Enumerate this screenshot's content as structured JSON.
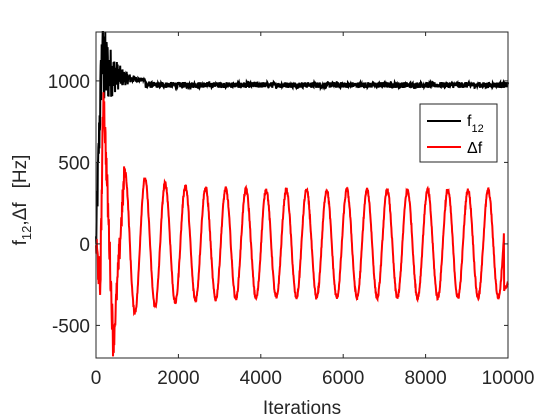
{
  "chart_data": {
    "type": "line",
    "xlabel": "Iterations",
    "ylabel_main": "f",
    "ylabel_sub": "12",
    "ylabel_rest": ",Δf",
    "ylabel_unit": "[Hz]",
    "xlim": [
      0,
      10000
    ],
    "ylim": [
      -700,
      1300
    ],
    "x_ticks": [
      0,
      2000,
      4000,
      6000,
      8000,
      10000
    ],
    "x_tick_labels": [
      "0",
      "2000",
      "4000",
      "6000",
      "8000",
      "10000"
    ],
    "y_ticks": [
      -500,
      0,
      500,
      1000
    ],
    "y_tick_labels": [
      "-500",
      "0",
      "500",
      "1000"
    ],
    "grid": false,
    "legend_position": "right",
    "series": [
      {
        "name_main": "f",
        "name_sub": "12",
        "color": "#000000",
        "description_values": {
          "start": 0,
          "early_peak": 1300,
          "steady_state": 975,
          "settle_iteration": 1200
        }
      },
      {
        "name_main": "Δf",
        "name_sub": "",
        "color": "#ff0000",
        "description_values": {
          "start": 0,
          "early_peak": 950,
          "early_trough": -630,
          "oscillation_amplitude": 330,
          "oscillation_period": 490,
          "end_value": -250
        }
      }
    ]
  }
}
